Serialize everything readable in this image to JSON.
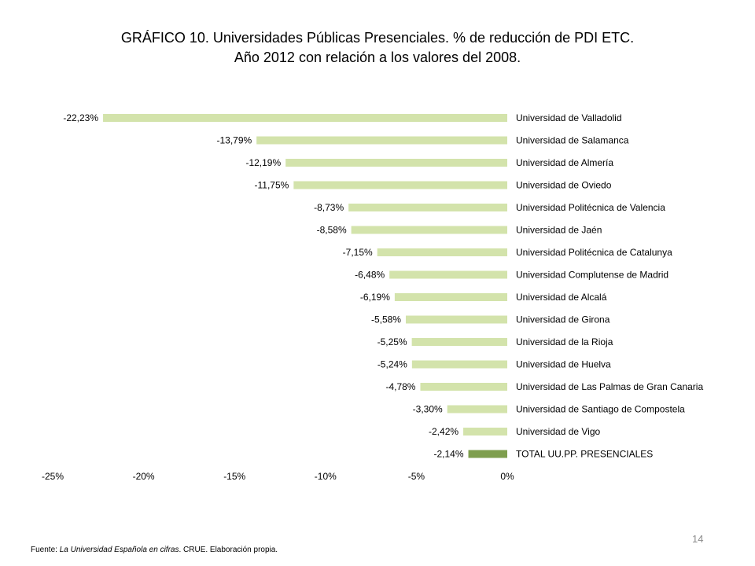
{
  "title_line1": "GRÁFICO 10. Universidades Públicas Presenciales. % de reducción de PDI ETC.",
  "title_line2": "Año 2012 con relación a los valores del 2008.",
  "footer": {
    "source_prefix": "Fuente: ",
    "source_title": "La Universidad Española en cifras",
    "source_suffix": ". CRUE. Elaboración propia."
  },
  "page_number": "14",
  "colors": {
    "bar": "#d3e3ab",
    "total_bar": "#7e9e4e"
  },
  "chart_data": {
    "type": "bar",
    "orientation": "horizontal",
    "title": "GRÁFICO 10. Universidades Públicas Presenciales. % de reducción de PDI ETC. Año 2012 con relación a los valores del 2008.",
    "categories": [
      "Universidad de Valladolid",
      "Universidad de Salamanca",
      "Universidad de Almería",
      "Universidad de Oviedo",
      "Universidad Politécnica de Valencia",
      "Universidad de Jaén",
      "Universidad Politécnica de Catalunya",
      "Universidad Complutense de Madrid",
      "Universidad de Alcalá",
      "Universidad de Girona",
      "Universidad de la Rioja",
      "Universidad de Huelva",
      "Universidad de Las Palmas de Gran Canaria",
      "Universidad de Santiago de Compostela",
      "Universidad de Vigo",
      "TOTAL UU.PP. PRESENCIALES"
    ],
    "values": [
      -22.23,
      -13.79,
      -12.19,
      -11.75,
      -8.73,
      -8.58,
      -7.15,
      -6.48,
      -6.19,
      -5.58,
      -5.25,
      -5.24,
      -4.78,
      -3.3,
      -2.42,
      -2.14
    ],
    "data_labels": [
      "-22,23%",
      "-13,79%",
      "-12,19%",
      "-11,75%",
      "-8,73%",
      "-8,58%",
      "-7,15%",
      "-6,48%",
      "-6,19%",
      "-5,58%",
      "-5,25%",
      "-5,24%",
      "-4,78%",
      "-3,30%",
      "-2,42%",
      "-2,14%"
    ],
    "xlim": [
      -25,
      0
    ],
    "x_ticks": [
      -25,
      -20,
      -15,
      -10,
      -5,
      0
    ],
    "x_tick_labels": [
      "-25%",
      "-20%",
      "-15%",
      "-10%",
      "-5%",
      "0%"
    ],
    "highlight_index": 15,
    "grid": false,
    "legend": "none"
  }
}
